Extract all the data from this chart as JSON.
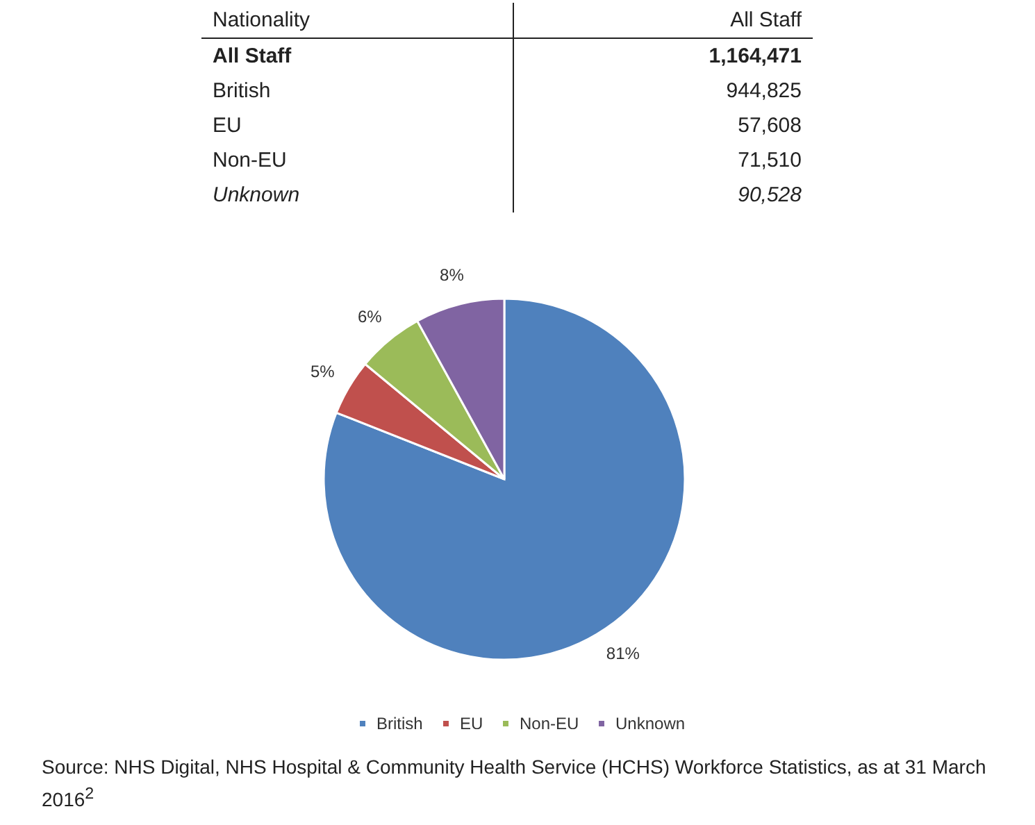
{
  "chart_data": {
    "type": "pie",
    "categories": [
      "British",
      "EU",
      "Non-EU",
      "Unknown"
    ],
    "values": [
      81,
      5,
      6,
      8
    ],
    "colors": [
      "#4f81bd",
      "#c0504d",
      "#9bbb59",
      "#8064a2"
    ],
    "value_labels": [
      "81%",
      "5%",
      "6%",
      "8%"
    ],
    "legend": "bottom",
    "annotations": [
      "Nationality",
      "All Staff",
      "All Staff",
      "1,164,471",
      "British",
      "944,825",
      "EU",
      "57,608",
      "Non-EU",
      "71,510",
      "Unknown",
      "90,528",
      "Source: NHS Digital, NHS Hospital & Community Health Service (HCHS) Workforce Statistics, as at 31 March 2016$^{2}$"
    ]
  }
}
